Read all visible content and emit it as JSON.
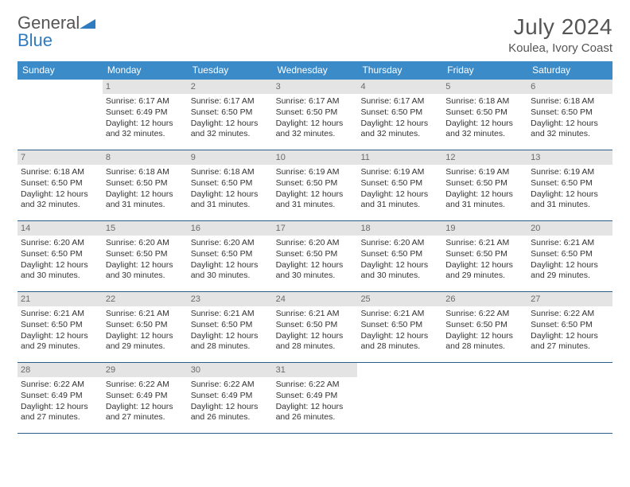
{
  "logo": {
    "word1": "General",
    "word2": "Blue"
  },
  "header": {
    "month_title": "July 2024",
    "location": "Koulea, Ivory Coast"
  },
  "colors": {
    "header_bg": "#3b8bc9",
    "daynum_bg": "#e4e4e4",
    "rule": "#2a5d8a",
    "logo_blue": "#2f7bbf",
    "text": "#333333"
  },
  "days_of_week": [
    "Sunday",
    "Monday",
    "Tuesday",
    "Wednesday",
    "Thursday",
    "Friday",
    "Saturday"
  ],
  "weeks": [
    [
      {
        "n": "",
        "sr": "",
        "ss": "",
        "dl": ""
      },
      {
        "n": "1",
        "sr": "Sunrise: 6:17 AM",
        "ss": "Sunset: 6:49 PM",
        "dl": "Daylight: 12 hours and 32 minutes."
      },
      {
        "n": "2",
        "sr": "Sunrise: 6:17 AM",
        "ss": "Sunset: 6:50 PM",
        "dl": "Daylight: 12 hours and 32 minutes."
      },
      {
        "n": "3",
        "sr": "Sunrise: 6:17 AM",
        "ss": "Sunset: 6:50 PM",
        "dl": "Daylight: 12 hours and 32 minutes."
      },
      {
        "n": "4",
        "sr": "Sunrise: 6:17 AM",
        "ss": "Sunset: 6:50 PM",
        "dl": "Daylight: 12 hours and 32 minutes."
      },
      {
        "n": "5",
        "sr": "Sunrise: 6:18 AM",
        "ss": "Sunset: 6:50 PM",
        "dl": "Daylight: 12 hours and 32 minutes."
      },
      {
        "n": "6",
        "sr": "Sunrise: 6:18 AM",
        "ss": "Sunset: 6:50 PM",
        "dl": "Daylight: 12 hours and 32 minutes."
      }
    ],
    [
      {
        "n": "7",
        "sr": "Sunrise: 6:18 AM",
        "ss": "Sunset: 6:50 PM",
        "dl": "Daylight: 12 hours and 32 minutes."
      },
      {
        "n": "8",
        "sr": "Sunrise: 6:18 AM",
        "ss": "Sunset: 6:50 PM",
        "dl": "Daylight: 12 hours and 31 minutes."
      },
      {
        "n": "9",
        "sr": "Sunrise: 6:18 AM",
        "ss": "Sunset: 6:50 PM",
        "dl": "Daylight: 12 hours and 31 minutes."
      },
      {
        "n": "10",
        "sr": "Sunrise: 6:19 AM",
        "ss": "Sunset: 6:50 PM",
        "dl": "Daylight: 12 hours and 31 minutes."
      },
      {
        "n": "11",
        "sr": "Sunrise: 6:19 AM",
        "ss": "Sunset: 6:50 PM",
        "dl": "Daylight: 12 hours and 31 minutes."
      },
      {
        "n": "12",
        "sr": "Sunrise: 6:19 AM",
        "ss": "Sunset: 6:50 PM",
        "dl": "Daylight: 12 hours and 31 minutes."
      },
      {
        "n": "13",
        "sr": "Sunrise: 6:19 AM",
        "ss": "Sunset: 6:50 PM",
        "dl": "Daylight: 12 hours and 31 minutes."
      }
    ],
    [
      {
        "n": "14",
        "sr": "Sunrise: 6:20 AM",
        "ss": "Sunset: 6:50 PM",
        "dl": "Daylight: 12 hours and 30 minutes."
      },
      {
        "n": "15",
        "sr": "Sunrise: 6:20 AM",
        "ss": "Sunset: 6:50 PM",
        "dl": "Daylight: 12 hours and 30 minutes."
      },
      {
        "n": "16",
        "sr": "Sunrise: 6:20 AM",
        "ss": "Sunset: 6:50 PM",
        "dl": "Daylight: 12 hours and 30 minutes."
      },
      {
        "n": "17",
        "sr": "Sunrise: 6:20 AM",
        "ss": "Sunset: 6:50 PM",
        "dl": "Daylight: 12 hours and 30 minutes."
      },
      {
        "n": "18",
        "sr": "Sunrise: 6:20 AM",
        "ss": "Sunset: 6:50 PM",
        "dl": "Daylight: 12 hours and 30 minutes."
      },
      {
        "n": "19",
        "sr": "Sunrise: 6:21 AM",
        "ss": "Sunset: 6:50 PM",
        "dl": "Daylight: 12 hours and 29 minutes."
      },
      {
        "n": "20",
        "sr": "Sunrise: 6:21 AM",
        "ss": "Sunset: 6:50 PM",
        "dl": "Daylight: 12 hours and 29 minutes."
      }
    ],
    [
      {
        "n": "21",
        "sr": "Sunrise: 6:21 AM",
        "ss": "Sunset: 6:50 PM",
        "dl": "Daylight: 12 hours and 29 minutes."
      },
      {
        "n": "22",
        "sr": "Sunrise: 6:21 AM",
        "ss": "Sunset: 6:50 PM",
        "dl": "Daylight: 12 hours and 29 minutes."
      },
      {
        "n": "23",
        "sr": "Sunrise: 6:21 AM",
        "ss": "Sunset: 6:50 PM",
        "dl": "Daylight: 12 hours and 28 minutes."
      },
      {
        "n": "24",
        "sr": "Sunrise: 6:21 AM",
        "ss": "Sunset: 6:50 PM",
        "dl": "Daylight: 12 hours and 28 minutes."
      },
      {
        "n": "25",
        "sr": "Sunrise: 6:21 AM",
        "ss": "Sunset: 6:50 PM",
        "dl": "Daylight: 12 hours and 28 minutes."
      },
      {
        "n": "26",
        "sr": "Sunrise: 6:22 AM",
        "ss": "Sunset: 6:50 PM",
        "dl": "Daylight: 12 hours and 28 minutes."
      },
      {
        "n": "27",
        "sr": "Sunrise: 6:22 AM",
        "ss": "Sunset: 6:50 PM",
        "dl": "Daylight: 12 hours and 27 minutes."
      }
    ],
    [
      {
        "n": "28",
        "sr": "Sunrise: 6:22 AM",
        "ss": "Sunset: 6:49 PM",
        "dl": "Daylight: 12 hours and 27 minutes."
      },
      {
        "n": "29",
        "sr": "Sunrise: 6:22 AM",
        "ss": "Sunset: 6:49 PM",
        "dl": "Daylight: 12 hours and 27 minutes."
      },
      {
        "n": "30",
        "sr": "Sunrise: 6:22 AM",
        "ss": "Sunset: 6:49 PM",
        "dl": "Daylight: 12 hours and 26 minutes."
      },
      {
        "n": "31",
        "sr": "Sunrise: 6:22 AM",
        "ss": "Sunset: 6:49 PM",
        "dl": "Daylight: 12 hours and 26 minutes."
      },
      {
        "n": "",
        "sr": "",
        "ss": "",
        "dl": ""
      },
      {
        "n": "",
        "sr": "",
        "ss": "",
        "dl": ""
      },
      {
        "n": "",
        "sr": "",
        "ss": "",
        "dl": ""
      }
    ]
  ]
}
